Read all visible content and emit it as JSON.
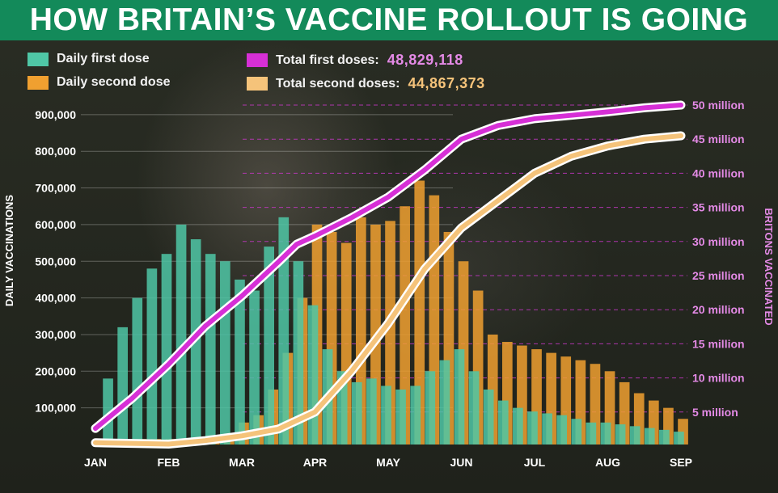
{
  "title": "HOW BRITAIN’S VACCINE ROLLOUT IS GOING",
  "legend": {
    "daily_first": "Daily first dose",
    "daily_second": "Daily second dose",
    "total_first": "Total first doses:",
    "total_second": "Total second doses:",
    "total_first_value": "48,829,118",
    "total_second_value": "44,867,373"
  },
  "colors": {
    "daily_first": "#4fc7a6",
    "daily_second": "#f0a030",
    "total_first": "#d62fd6",
    "total_second": "#f5c37a",
    "title_bg": "#138a5a",
    "right_axis": "#e48ae6"
  },
  "chart_data": {
    "type": "bar",
    "x_axis": {
      "ticks": [
        "JAN",
        "FEB",
        "MAR",
        "APR",
        "MAY",
        "JUN",
        "JUL",
        "AUG",
        "SEP"
      ]
    },
    "y_left": {
      "label": "DAILY VACCINATIONS",
      "range": [
        0,
        950000
      ],
      "ticks": [
        100000,
        200000,
        300000,
        400000,
        500000,
        600000,
        700000,
        800000,
        900000
      ],
      "tick_labels": [
        "100,000",
        "200,000",
        "300,000",
        "400,000",
        "500,000",
        "600,000",
        "700,000",
        "800,000",
        "900,000"
      ]
    },
    "y_right": {
      "label": "BRITONS VACCINATED",
      "range": [
        0,
        50000000
      ],
      "ticks": [
        5000000,
        10000000,
        15000000,
        20000000,
        25000000,
        30000000,
        35000000,
        40000000,
        45000000,
        50000000
      ],
      "tick_labels": [
        "5 million",
        "10 million",
        "15 million",
        "20 million",
        "25 million",
        "30 million",
        "35 million",
        "40 million",
        "45 million",
        "50 million"
      ],
      "gridlines": "dashed"
    },
    "series": [
      {
        "name": "Daily first dose",
        "type": "bar",
        "axis": "left",
        "x_month": [
          0.2,
          0.4,
          0.6,
          0.8,
          1.0,
          1.2,
          1.4,
          1.6,
          1.8,
          2.0,
          2.2,
          2.4,
          2.6,
          2.8,
          3.0,
          3.2,
          3.4,
          3.6,
          3.8,
          4.0,
          4.2,
          4.4,
          4.6,
          4.8,
          5.0,
          5.2,
          5.4,
          5.6,
          5.8,
          6.0,
          6.2,
          6.4,
          6.6,
          6.8,
          7.0,
          7.2,
          7.4,
          7.6,
          7.8,
          8.0
        ],
        "values": [
          180000,
          320000,
          400000,
          480000,
          520000,
          600000,
          560000,
          520000,
          500000,
          450000,
          420000,
          540000,
          620000,
          500000,
          380000,
          260000,
          200000,
          170000,
          180000,
          160000,
          150000,
          160000,
          200000,
          230000,
          260000,
          200000,
          150000,
          120000,
          100000,
          90000,
          85000,
          80000,
          70000,
          60000,
          60000,
          55000,
          50000,
          45000,
          40000,
          35000
        ]
      },
      {
        "name": "Daily second dose",
        "type": "bar",
        "axis": "left",
        "x_month": [
          0.2,
          0.4,
          0.6,
          0.8,
          1.0,
          1.2,
          1.4,
          1.6,
          1.8,
          2.0,
          2.2,
          2.4,
          2.6,
          2.8,
          3.0,
          3.2,
          3.4,
          3.6,
          3.8,
          4.0,
          4.2,
          4.4,
          4.6,
          4.8,
          5.0,
          5.2,
          5.4,
          5.6,
          5.8,
          6.0,
          6.2,
          6.4,
          6.6,
          6.8,
          7.0,
          7.2,
          7.4,
          7.6,
          7.8,
          8.0
        ],
        "values": [
          10000,
          15000,
          15000,
          15000,
          15000,
          15000,
          20000,
          25000,
          30000,
          60000,
          80000,
          150000,
          250000,
          400000,
          600000,
          580000,
          550000,
          620000,
          600000,
          610000,
          650000,
          720000,
          680000,
          580000,
          500000,
          420000,
          300000,
          280000,
          270000,
          260000,
          250000,
          240000,
          230000,
          220000,
          200000,
          170000,
          140000,
          120000,
          100000,
          70000
        ]
      },
      {
        "name": "Total first doses",
        "type": "line",
        "axis": "right",
        "x_month": [
          0.0,
          0.5,
          1.0,
          1.5,
          2.0,
          2.5,
          2.75,
          3.0,
          3.5,
          4.0,
          4.5,
          5.0,
          5.5,
          6.0,
          6.5,
          7.0,
          7.5,
          8.0
        ],
        "values": [
          2600000,
          7000000,
          12000000,
          17600000,
          22000000,
          27000000,
          29600000,
          30800000,
          33500000,
          36500000,
          40500000,
          45000000,
          47000000,
          48000000,
          48500000,
          49000000,
          49600000,
          50000000
        ]
      },
      {
        "name": "Total second doses",
        "type": "line",
        "axis": "right",
        "x_month": [
          0.0,
          0.5,
          1.0,
          1.5,
          2.0,
          2.5,
          3.0,
          3.5,
          4.0,
          4.5,
          5.0,
          5.5,
          6.0,
          6.5,
          7.0,
          7.5,
          8.0
        ],
        "values": [
          500000,
          400000,
          300000,
          800000,
          1500000,
          2500000,
          5000000,
          11000000,
          18000000,
          26000000,
          32000000,
          36000000,
          40000000,
          42500000,
          44000000,
          45000000,
          45500000
        ]
      }
    ]
  }
}
